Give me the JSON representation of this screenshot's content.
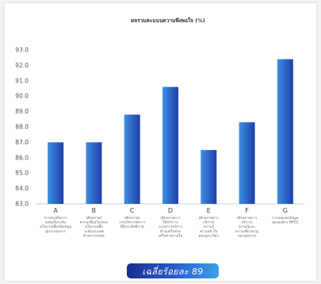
{
  "chart_data": {
    "type": "bar",
    "title": "ผลรวมคะแนนความพึงพอใจ (%)",
    "categories": [
      "A",
      "B",
      "C",
      "D",
      "E",
      "F",
      "G"
    ],
    "descriptions": [
      [
        "การส่งเสริมการ",
        "ลงทุนในระดับ",
        "นโยบายเพื่อสนับสนุน",
        "ผู้ประกอบการ"
      ],
      [
        "(ศักยภาพ)",
        "ความเชื่อมโยงของ",
        "นโยบายเพื่อ",
        "ระดับประเทศ",
        "ด้านการลงทุน"
      ],
      [
        "(ศักยภาพ)",
        "การบริหารจัดการ",
        "ที่มีประสิทธิภาพ"
      ],
      [
        "(ศักยภาพการ",
        "ให้บริการ)",
        "ระบบการบริการ",
        "ด้านเครือข่าย",
        "เครือข่ายภายใน"
      ],
      [
        "(ศักยภาพการ",
        "บริการ)",
        "ความรู้",
        "ความเข้าใจ",
        "ต่อกฎระเบียบ"
      ],
      [
        "(ศักยภาพการ",
        "บริการ)",
        "ความรู้และ",
        "ความเชี่ยวชาญ",
        "ของบุคลากร"
      ],
      [
        "การเผยแพร่ข้อมูล",
        "ขององค์กร MFEC"
      ]
    ],
    "values": [
      87.0,
      87.0,
      88.8,
      90.6,
      86.5,
      88.3,
      92.4
    ],
    "ylim": [
      83.0,
      93.0
    ],
    "yticks": [
      "93.0",
      "92.0",
      "91.0",
      "90.0",
      "89.0",
      "88.0",
      "87.0",
      "86.0",
      "85.0",
      "84.0",
      "83.0"
    ],
    "ylabel": "",
    "xlabel": "",
    "grid": false,
    "bar_color_light": "#3d8fe6",
    "bar_color_dark": "#1f3fa8"
  },
  "badge": {
    "label": "เฉลี่ยร้อยละ 89"
  }
}
